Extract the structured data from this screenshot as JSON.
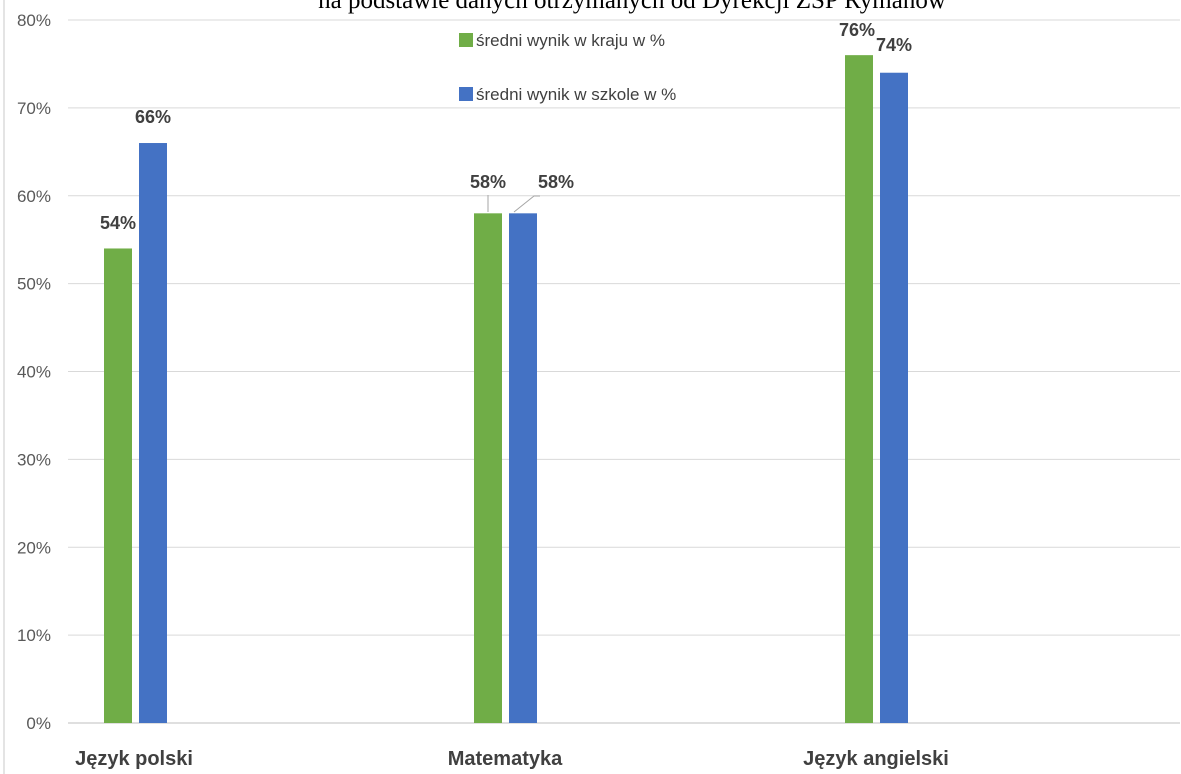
{
  "chart_data": {
    "type": "bar",
    "title": "na podstawie danych otrzymanych od Dyrekcji ZSP Rymanów",
    "categories": [
      "Język polski",
      "Matematyka",
      "Język angielski"
    ],
    "series": [
      {
        "name": "średni wynik w kraju w %",
        "values": [
          54,
          58,
          76
        ],
        "labels": [
          "54%",
          "58%",
          "76%"
        ],
        "color": "#70ad47"
      },
      {
        "name": "średni wynik w szkole w %",
        "values": [
          66,
          58,
          74
        ],
        "labels": [
          "66%",
          "58%",
          "74%"
        ],
        "color": "#4472c4"
      }
    ],
    "yticks": [
      "0%",
      "10%",
      "20%",
      "30%",
      "40%",
      "50%",
      "60%",
      "70%",
      "80%"
    ],
    "ylim": [
      0,
      80
    ],
    "grid": true,
    "legend": "top-center",
    "xlabel": "",
    "ylabel": ""
  }
}
